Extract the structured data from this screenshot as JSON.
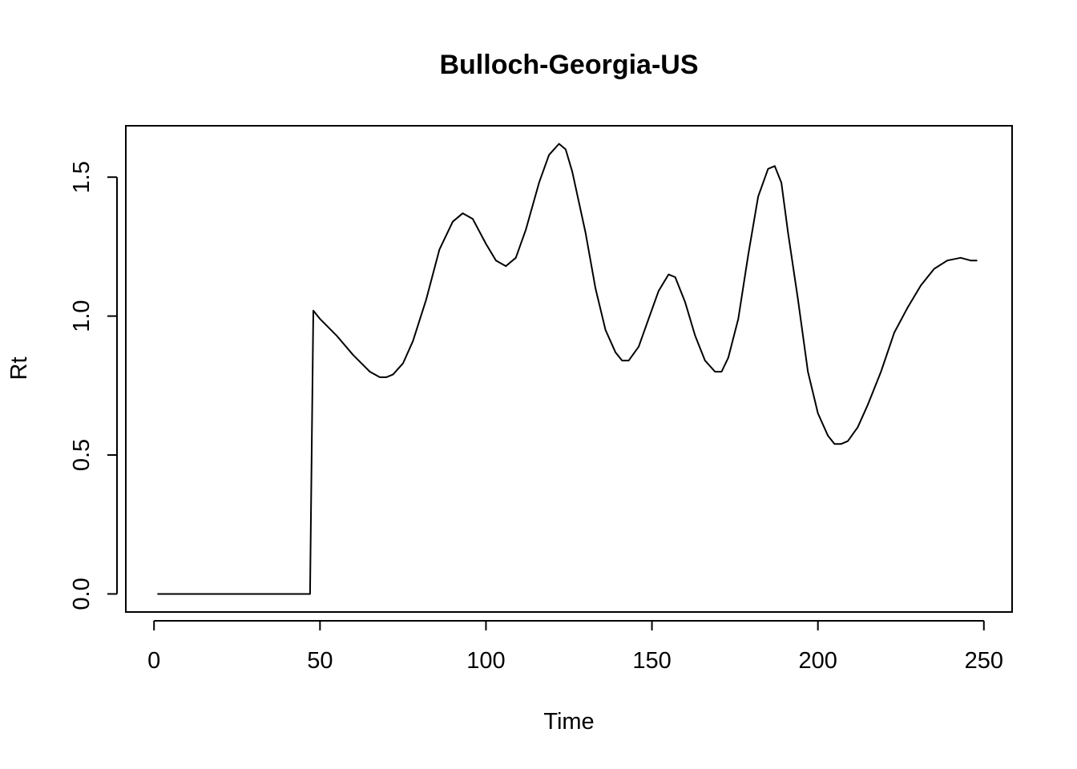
{
  "chart_data": {
    "type": "line",
    "title": "Bulloch-Georgia-US",
    "xlabel": "Time",
    "ylabel": "Rt",
    "xlim": [
      -8.5,
      258.5
    ],
    "ylim": [
      -0.065,
      1.685
    ],
    "xticks": [
      0,
      50,
      100,
      150,
      200,
      250
    ],
    "xtick_labels": [
      "0",
      "50",
      "100",
      "150",
      "200",
      "250"
    ],
    "yticks": [
      0.0,
      0.5,
      1.0,
      1.5
    ],
    "ytick_labels": [
      "0.0",
      "0.5",
      "1.0",
      "1.5"
    ],
    "grid": false,
    "legend": "none",
    "line_color": "#000000",
    "x": [
      1,
      5,
      10,
      20,
      30,
      40,
      47,
      48,
      50,
      55,
      60,
      65,
      68,
      70,
      72,
      75,
      78,
      82,
      86,
      90,
      93,
      96,
      100,
      103,
      106,
      109,
      112,
      116,
      119,
      122,
      124,
      126,
      130,
      133,
      136,
      139,
      141,
      143,
      146,
      149,
      152,
      155,
      157,
      160,
      163,
      166,
      169,
      171,
      173,
      176,
      179,
      182,
      185,
      187,
      189,
      191,
      194,
      197,
      200,
      203,
      205,
      207,
      209,
      212,
      215,
      219,
      223,
      227,
      231,
      235,
      239,
      243,
      246,
      248
    ],
    "y": [
      0.0,
      0.0,
      0.0,
      0.0,
      0.0,
      0.0,
      0.0,
      1.02,
      0.99,
      0.93,
      0.86,
      0.8,
      0.78,
      0.78,
      0.79,
      0.83,
      0.91,
      1.06,
      1.24,
      1.34,
      1.37,
      1.35,
      1.26,
      1.2,
      1.18,
      1.21,
      1.31,
      1.48,
      1.58,
      1.62,
      1.6,
      1.52,
      1.3,
      1.1,
      0.95,
      0.87,
      0.84,
      0.84,
      0.89,
      0.99,
      1.09,
      1.15,
      1.14,
      1.05,
      0.93,
      0.84,
      0.8,
      0.8,
      0.85,
      0.99,
      1.22,
      1.43,
      1.53,
      1.54,
      1.48,
      1.3,
      1.06,
      0.8,
      0.65,
      0.57,
      0.54,
      0.54,
      0.55,
      0.6,
      0.68,
      0.8,
      0.94,
      1.03,
      1.11,
      1.17,
      1.2,
      1.21,
      1.2,
      1.2
    ]
  }
}
